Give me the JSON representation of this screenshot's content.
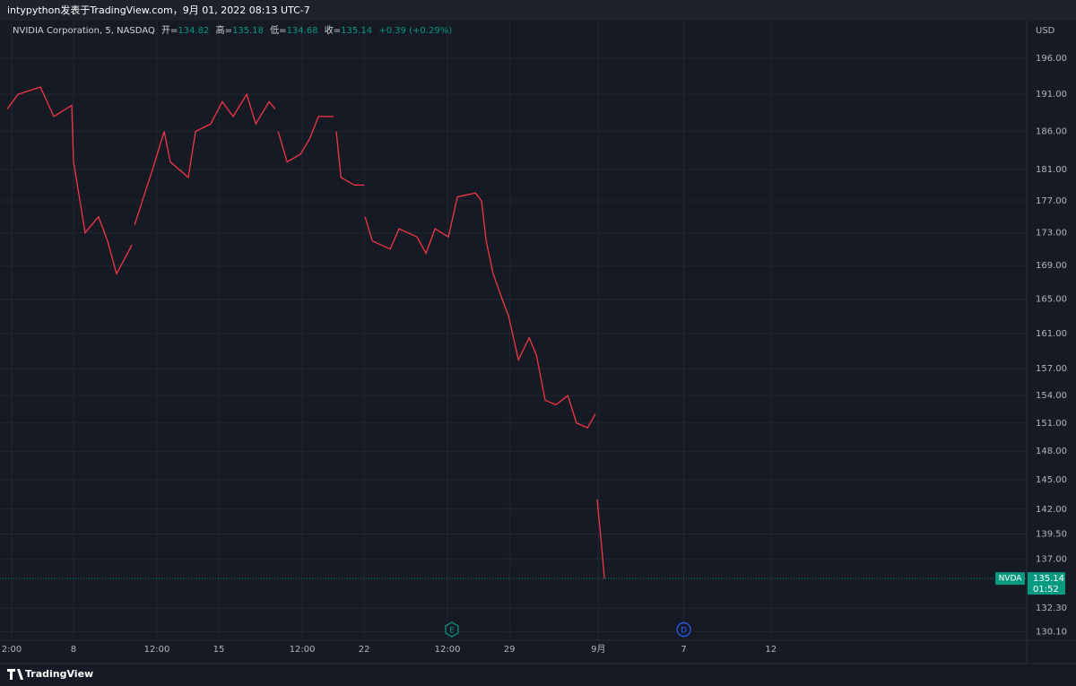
{
  "header": {
    "text": "intypython发表于TradingView.com，9月 01, 2022 08:13 UTC-7"
  },
  "legend": {
    "symbol": "NVIDIA Corporation, 5, NASDAQ",
    "open_label": "开=",
    "open": 134.82,
    "high_label": "高=",
    "high": 135.18,
    "low_label": "低=",
    "low": 134.68,
    "close_label": "收=",
    "close": 135.14,
    "change": "+0.39 (+0.29%)"
  },
  "chart_data": {
    "type": "line",
    "log_scale": true,
    "grid": true,
    "currency": "USD",
    "x": [
      -2.28,
      -1.91,
      -1.14,
      -0.68,
      -0.06,
      0,
      0.4,
      0.86,
      1.17,
      1.48,
      2.01,
      2.05,
      2.1,
      2.72,
      3.12,
      3.33,
      3.95,
      4.2,
      4.72,
      5.12,
      5.49,
      5.96,
      6.27,
      6.73,
      6.94,
      6.99,
      7.04,
      7.35,
      7.81,
      8.12,
      8.43,
      8.95,
      9.0,
      9.04,
      9.2,
      9.66,
      10.0,
      10.02,
      10.03,
      10.28,
      10.9,
      11.2,
      11.82,
      12.13,
      12.44,
      12.9,
      13.21,
      13.83,
      14.04,
      14.2,
      14.44,
      14.75,
      14.97,
      15.31,
      15.68,
      15.93,
      16.23,
      16.6,
      17.01,
      17.31,
      17.69,
      17.96,
      17.99,
      18.02,
      18.15,
      18.27
    ],
    "series": [
      {
        "name": "NVDA",
        "color": "#f23645",
        "values": [
          189,
          191,
          192,
          188,
          189.5,
          182,
          173,
          175,
          172,
          168,
          171.5,
          null,
          174,
          181,
          186,
          182,
          180,
          186,
          187,
          190,
          188,
          191,
          187,
          190,
          189,
          null,
          186,
          182,
          183,
          185,
          188,
          188,
          null,
          186,
          180,
          179,
          179,
          null,
          175,
          172,
          171,
          173.5,
          172.5,
          170.5,
          173.5,
          172.5,
          177.5,
          178,
          177,
          172,
          168,
          165,
          163,
          158,
          160.5,
          158.5,
          153.5,
          153,
          154,
          151,
          150.5,
          152,
          null,
          143,
          139,
          135.14
        ]
      }
    ],
    "ylim": [
      129.3,
      201.2
    ],
    "yticks": [
      {
        "value": 196,
        "label": "196.00"
      },
      {
        "value": 191,
        "label": "191.00"
      },
      {
        "value": 186,
        "label": "186.00"
      },
      {
        "value": 181,
        "label": "181.00"
      },
      {
        "value": 177,
        "label": "177.00"
      },
      {
        "value": 173,
        "label": "173.00"
      },
      {
        "value": 169,
        "label": "169.00"
      },
      {
        "value": 165,
        "label": "165.00"
      },
      {
        "value": 161,
        "label": "161.00"
      },
      {
        "value": 157,
        "label": "157.00"
      },
      {
        "value": 154,
        "label": "154.00"
      },
      {
        "value": 151,
        "label": "151.00"
      },
      {
        "value": 148,
        "label": "148.00"
      },
      {
        "value": 145,
        "label": "145.00"
      },
      {
        "value": 142,
        "label": "142.00"
      },
      {
        "value": 139.5,
        "label": "139.50"
      },
      {
        "value": 137,
        "label": "137.00"
      },
      {
        "value": 132.3,
        "label": "132.30"
      },
      {
        "value": 130.1,
        "label": "130.10"
      }
    ],
    "xlim": [
      -2.53,
      32.8
    ],
    "xticks": [
      {
        "value": -2.13,
        "label": "2:00"
      },
      {
        "value": 0,
        "label": "8"
      },
      {
        "value": 2.87,
        "label": "12:00"
      },
      {
        "value": 5,
        "label": "15"
      },
      {
        "value": 7.87,
        "label": "12:00"
      },
      {
        "value": 10,
        "label": "22"
      },
      {
        "value": 12.87,
        "label": "12:00"
      },
      {
        "value": 15,
        "label": "29"
      },
      {
        "value": 18.06,
        "label": "9月"
      },
      {
        "value": 21,
        "label": "7"
      },
      {
        "value": 24,
        "label": "12"
      }
    ],
    "last_price": {
      "symbol": "NVDA",
      "value": 135.14,
      "countdown": "01:52",
      "color": "#089981"
    },
    "events": [
      {
        "label": "E",
        "x": 13.02,
        "color": "#089981"
      },
      {
        "label": "D",
        "x": 21.0,
        "color": "#2962ff"
      }
    ]
  },
  "footer": {
    "brand": "TradingView"
  }
}
